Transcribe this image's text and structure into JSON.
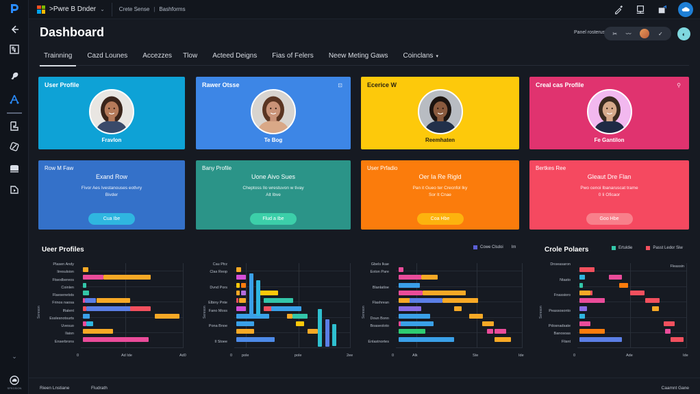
{
  "window": {
    "app_name": ">Pwre B Dnder",
    "breadcrumb": [
      "Crete Sense",
      "Bashforms"
    ]
  },
  "sidebar": {
    "icons": [
      {
        "name": "app-logo-icon"
      },
      {
        "name": "back-arrow-icon"
      },
      {
        "name": "report-icon"
      },
      {
        "name": "bird-icon"
      },
      {
        "name": "model-icon",
        "active": true
      },
      {
        "name": "page-user-icon"
      },
      {
        "name": "rocket-icon"
      },
      {
        "name": "display-icon"
      },
      {
        "name": "media-icon"
      }
    ],
    "collapse_label": "⌄",
    "bottom_label": "SPEGSION"
  },
  "topbar_icons": [
    "pen-icon",
    "monitor-icon",
    "share-icon",
    "cloud-account-icon"
  ],
  "header": {
    "title": "Dashboard",
    "filter_label": "Panel rosterus",
    "filter_pill": [
      "✂",
      "〰",
      "✓"
    ]
  },
  "tabs": [
    {
      "label": "Trainning",
      "active": true
    },
    {
      "label": "Cazd Lounes"
    },
    {
      "label": "Accezzes"
    },
    {
      "label": "Tlow"
    },
    {
      "label": "Acteed Deigns"
    },
    {
      "label": "Fias of Felers"
    },
    {
      "label": "Neew Meting Gaws"
    },
    {
      "label": "Coinclans",
      "dropdown": true
    }
  ],
  "profile_cards": [
    {
      "title": "User Profile",
      "name": "Fravlon",
      "color": "#0ea2d6",
      "corner": "",
      "photo": {
        "skin": "#b57a5a",
        "hair": "#3a241a",
        "shirt": "#3a4a6a",
        "bg": "#e9e6e2"
      }
    },
    {
      "title": "Rawer Otsse",
      "name": "Te Bog",
      "color": "#3d86e6",
      "corner": "⊡",
      "photo": {
        "skin": "#c99378",
        "hair": "#5a3522",
        "shirt": "#d9a887",
        "bg": "#d8d4cf"
      }
    },
    {
      "title": "Ecerice W",
      "name": "Reemhaten",
      "color": "#fdc90b",
      "dark_text": true,
      "corner": "",
      "photo": {
        "skin": "#8a5a3e",
        "hair": "#1c1410",
        "shirt": "#22304a",
        "bg": "#b8bcc2"
      }
    },
    {
      "title": "Creal cas Profile",
      "name": "Fe Gantilon",
      "color": "#e0336f",
      "corner": "⚲",
      "photo": {
        "skin": "#d6a98b",
        "hair": "#3a2a20",
        "shirt": "#1f2a44",
        "bg": "#f2b8ef"
      }
    }
  ],
  "info_cards": [
    {
      "title": "Row M Faw",
      "headline": "Exand Row",
      "desc": [
        "Fivor Aes Ivestanouses eotlvry",
        "Bivder"
      ],
      "button": "Cua Ibe",
      "color": "#3471c9",
      "btn_color": "#2fb6e0"
    },
    {
      "title": "Bany Profile",
      "headline": "Uone Aivo Sues",
      "desc": [
        "Cheptoss Ilo wrestuvon w tivay",
        "Alt Ibve"
      ],
      "button": "Flud a Ibe",
      "color": "#2b9488",
      "btn_color": "#3ccfa9"
    },
    {
      "title": "User Prfadio",
      "headline": "Oer Ia Re Rigld",
      "desc": [
        "Pan it Gueo ter Crecnfol Iky",
        "Sor It Cnae"
      ],
      "button": "Coa Hbe",
      "color": "#fb7c0c",
      "btn_color": "#fdb30e"
    },
    {
      "title": "Bertkes Ree",
      "headline": "Gleaut Dre Flan",
      "desc": [
        "Pwo cenoi Ibanaruscat trame",
        "0 Ii Oficaor"
      ],
      "button": "Goo Hbe",
      "color": "#f54960",
      "btn_color": "#f8808b"
    }
  ],
  "charts": {
    "c1_title": "Ueer Profiles",
    "c3_legend": [
      "Cowe Clsdoi",
      "Im"
    ],
    "c4_title": "Crole Polaers",
    "c4_legend": [
      "Ertuldie",
      "Passt Ledor Siw"
    ],
    "c4_note": "Fleassin"
  },
  "chart_data": [
    {
      "type": "bar",
      "title": "Ueer Profiles",
      "orientation": "horizontal-stacked",
      "categories": [
        "Plasen Andy",
        "Iiresulsion",
        "Ftsexlbereos",
        "Coinlen",
        "Flaesenetsts",
        "Frinos naosa",
        "Iftalent",
        "Esslesnotsurts",
        "Uvesuo",
        "Ilaisn",
        "Enserbrons"
      ],
      "xticks": [
        "0",
        "Ad Ide",
        "Ad0"
      ],
      "bars": [
        [
          {
            "start": 0.02,
            "end": 0.07,
            "color": "#f7a926"
          }
        ],
        [
          {
            "start": 0.02,
            "end": 0.22,
            "color": "#ea4c9a"
          },
          {
            "start": 0.22,
            "end": 0.68,
            "color": "#f7a926"
          }
        ],
        [
          {
            "start": 0.02,
            "end": 0.05,
            "color": "#33c6a9"
          }
        ],
        [
          {
            "start": 0.02,
            "end": 0.08,
            "color": "#33c6a9"
          }
        ],
        [
          {
            "start": 0.02,
            "end": 0.04,
            "color": "#ea4c9a"
          },
          {
            "start": 0.04,
            "end": 0.15,
            "color": "#5b7fe6"
          },
          {
            "start": 0.15,
            "end": 0.48,
            "color": "#f7a926"
          }
        ],
        [
          {
            "start": 0.02,
            "end": 0.05,
            "color": "#f2505e"
          },
          {
            "start": 0.05,
            "end": 0.48,
            "color": "#5b7fe6"
          },
          {
            "start": 0.48,
            "end": 0.68,
            "color": "#f2505e"
          }
        ],
        [
          {
            "start": 0.02,
            "end": 0.09,
            "color": "#3aa0e8"
          },
          {
            "start": 0.72,
            "end": 0.96,
            "color": "#f7a926"
          }
        ],
        [
          {
            "start": 0.02,
            "end": 0.05,
            "color": "#ea4c9a"
          },
          {
            "start": 0.05,
            "end": 0.12,
            "color": "#2fb6e0"
          }
        ],
        [
          {
            "start": 0.02,
            "end": 0.31,
            "color": "#f7a926"
          }
        ],
        [
          {
            "start": 0.02,
            "end": 0.66,
            "color": "#ea4c9a"
          }
        ]
      ]
    },
    {
      "type": "bar",
      "title": "",
      "orientation": "horizontal+vertical-overlay",
      "categories": [
        "Cau Ptrz",
        "Clas Reop",
        "",
        "Dvnd Pors",
        "",
        "Elbiny Pnte",
        "Fano Moss",
        "",
        "Pona Bnoe",
        "",
        "Il Stoee"
      ],
      "xticks": [
        "0",
        "pole",
        "pole",
        "2ee"
      ],
      "bars": [
        [
          {
            "start": 0.02,
            "end": 0.06,
            "color": "#f7a926"
          }
        ],
        [
          {
            "start": 0.02,
            "end": 0.1,
            "color": "#d54fd9"
          }
        ],
        [
          {
            "start": 0.02,
            "end": 0.05,
            "color": "#fdc90b"
          },
          {
            "start": 0.06,
            "end": 0.1,
            "color": "#fb7c0c"
          }
        ],
        [
          {
            "start": 0.02,
            "end": 0.05,
            "color": "#f7a926"
          },
          {
            "start": 0.06,
            "end": 0.1,
            "color": "#b36cdd"
          },
          {
            "start": 0.19,
            "end": 0.38,
            "color": "#fdc90b"
          }
        ],
        [
          {
            "start": 0.02,
            "end": 0.04,
            "color": "#f2505e"
          },
          {
            "start": 0.04,
            "end": 0.1,
            "color": "#f7a926"
          },
          {
            "start": 0.25,
            "end": 0.5,
            "color": "#33c6a9"
          }
        ],
        [
          {
            "start": 0.02,
            "end": 0.1,
            "color": "#d54fd9"
          },
          {
            "start": 0.25,
            "end": 0.32,
            "color": "#f2505e"
          },
          {
            "start": 0.32,
            "end": 0.58,
            "color": "#3aa0e8"
          }
        ],
        [
          {
            "start": 0.02,
            "end": 0.3,
            "color": "#3aa0e8"
          },
          {
            "start": 0.45,
            "end": 0.5,
            "color": "#f7a926"
          },
          {
            "start": 0.5,
            "end": 0.63,
            "color": "#33c6a9"
          }
        ],
        [
          {
            "start": 0.02,
            "end": 0.17,
            "color": "#3aa0e8"
          },
          {
            "start": 0.53,
            "end": 0.6,
            "color": "#fdc90b"
          }
        ],
        [
          {
            "start": 0.02,
            "end": 0.17,
            "color": "#f7a926"
          },
          {
            "start": 0.63,
            "end": 0.72,
            "color": "#f7a926"
          }
        ],
        [
          {
            "start": 0.02,
            "end": 0.35,
            "color": "#4d8ae8"
          }
        ]
      ],
      "vbars": [
        {
          "x": 0.13,
          "top": 0.12,
          "bottom": 0.62,
          "color": "#3aa0e8"
        },
        {
          "x": 0.19,
          "top": 0.2,
          "bottom": 0.62,
          "color": "#2fb6e0"
        },
        {
          "x": 0.72,
          "top": 0.54,
          "bottom": 0.98,
          "color": "#2fc0d0"
        },
        {
          "x": 0.78,
          "top": 0.66,
          "bottom": 0.98,
          "color": "#5b7fe6"
        },
        {
          "x": 0.84,
          "top": 0.72,
          "bottom": 0.98,
          "color": "#2fc0d0"
        }
      ]
    },
    {
      "type": "bar",
      "title": "",
      "orientation": "horizontal-stacked",
      "legend": [
        "Cowe Clsdoi",
        "Im"
      ],
      "categories": [
        "Gbels Ikae",
        "Eoton Pare",
        "",
        "Blanlatloe",
        "",
        "Flashrean",
        "",
        "Doun Bonn",
        "Boaseoloto",
        "",
        "Enlastnortes"
      ],
      "xticks": [
        "0",
        "Alk",
        "Ste",
        "Ide"
      ],
      "bars": [
        [
          {
            "start": 0.02,
            "end": 0.06,
            "color": "#ea4c9a"
          }
        ],
        [
          {
            "start": 0.02,
            "end": 0.2,
            "color": "#ea4c9a"
          },
          {
            "start": 0.2,
            "end": 0.33,
            "color": "#f7a926"
          }
        ],
        [
          {
            "start": 0.02,
            "end": 0.19,
            "color": "#3aa0e8"
          }
        ],
        [
          {
            "start": 0.02,
            "end": 0.21,
            "color": "#ea4c9a"
          },
          {
            "start": 0.21,
            "end": 0.55,
            "color": "#f7a926"
          }
        ],
        [
          {
            "start": 0.02,
            "end": 0.11,
            "color": "#f7a926"
          },
          {
            "start": 0.11,
            "end": 0.37,
            "color": "#5b7fe6"
          },
          {
            "start": 0.37,
            "end": 0.65,
            "color": "#f7a926"
          }
        ],
        [
          {
            "start": 0.02,
            "end": 0.2,
            "color": "#8a6ce6"
          },
          {
            "start": 0.46,
            "end": 0.52,
            "color": "#f7a926"
          }
        ],
        [
          {
            "start": 0.02,
            "end": 0.27,
            "color": "#3aa0e8"
          },
          {
            "start": 0.58,
            "end": 0.69,
            "color": "#f7a926"
          }
        ],
        [
          {
            "start": 0.02,
            "end": 0.04,
            "color": "#ea4c9a"
          },
          {
            "start": 0.04,
            "end": 0.3,
            "color": "#3aa0e8"
          },
          {
            "start": 0.68,
            "end": 0.77,
            "color": "#f7a926"
          }
        ],
        [
          {
            "start": 0.02,
            "end": 0.23,
            "color": "#2ecc71"
          },
          {
            "start": 0.72,
            "end": 0.77,
            "color": "#ea4c9a"
          },
          {
            "start": 0.78,
            "end": 0.87,
            "color": "#ea4c9a"
          }
        ],
        [
          {
            "start": 0.02,
            "end": 0.46,
            "color": "#3aa0e8"
          },
          {
            "start": 0.78,
            "end": 0.91,
            "color": "#f7a926"
          }
        ]
      ]
    },
    {
      "type": "bar",
      "title": "Crole Polaers",
      "orientation": "horizontal-gantt",
      "legend": [
        "Ertuldie",
        "Passt Ledor Siw"
      ],
      "note": "Fleassin",
      "categories": [
        "Dnseasaron",
        "",
        "Ntasto",
        "",
        "Fnassioro",
        "",
        "Peassosonto",
        "",
        "Pdosnadsate",
        "Banosoas",
        "Flisnt"
      ],
      "xticks": [
        "0",
        "Ade",
        "Ide"
      ],
      "bars": [
        [
          {
            "start": 0.02,
            "end": 0.16,
            "color": "#f2505e"
          }
        ],
        [
          {
            "start": 0.02,
            "end": 0.07,
            "color": "#2fb6e0"
          },
          {
            "start": 0.29,
            "end": 0.41,
            "color": "#ea4c9a"
          }
        ],
        [
          {
            "start": 0.02,
            "end": 0.05,
            "color": "#33c6a9"
          },
          {
            "start": 0.38,
            "end": 0.46,
            "color": "#fb7c0c"
          }
        ],
        [
          {
            "start": 0.02,
            "end": 0.12,
            "color": "#f7a926"
          },
          {
            "start": 0.12,
            "end": 0.14,
            "color": "#f2505e"
          },
          {
            "start": 0.48,
            "end": 0.61,
            "color": "#f2505e"
          }
        ],
        [
          {
            "start": 0.02,
            "end": 0.25,
            "color": "#ea4c9a"
          },
          {
            "start": 0.62,
            "end": 0.75,
            "color": "#f2505e"
          }
        ],
        [
          {
            "start": 0.02,
            "end": 0.09,
            "color": "#8a6ce6"
          },
          {
            "start": 0.68,
            "end": 0.74,
            "color": "#f7a926"
          }
        ],
        [
          {
            "start": 0.02,
            "end": 0.07,
            "color": "#2fb6e0"
          }
        ],
        [
          {
            "start": 0.02,
            "end": 0.12,
            "color": "#ea4c9a"
          },
          {
            "start": 0.79,
            "end": 0.89,
            "color": "#f2505e"
          }
        ],
        [
          {
            "start": 0.02,
            "end": 0.25,
            "color": "#fb7c0c"
          },
          {
            "start": 0.8,
            "end": 0.85,
            "color": "#ea4c9a"
          }
        ],
        [
          {
            "start": 0.02,
            "end": 0.41,
            "color": "#5b7fe6"
          },
          {
            "start": 0.85,
            "end": 0.97,
            "color": "#f2505e"
          }
        ]
      ]
    }
  ],
  "footer": {
    "left": [
      "Rieen Lnstiane",
      "Fludrath"
    ],
    "right": "Caamnt Gane"
  }
}
